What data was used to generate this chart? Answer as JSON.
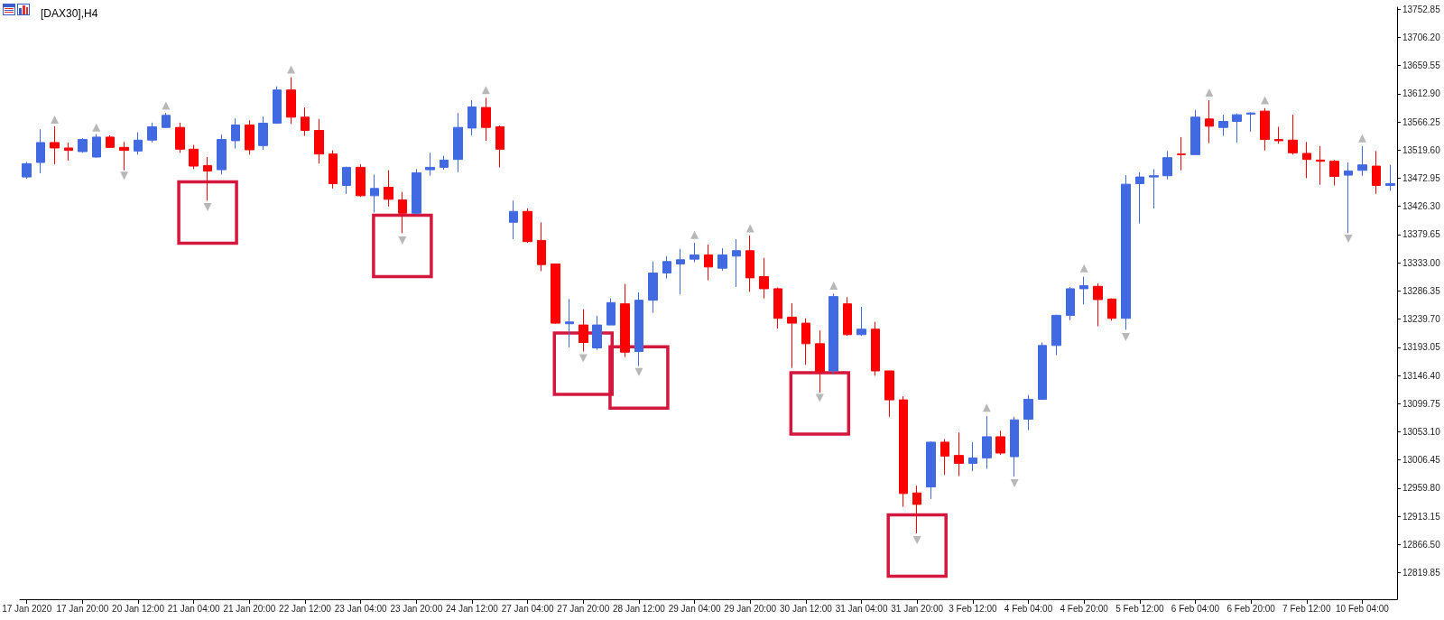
{
  "chart_data": {
    "type": "candlestick",
    "title": "[DAX30],H4",
    "categories": [
      "17 Jan 2020",
      null,
      null,
      null,
      "17 Jan 20:00",
      null,
      null,
      null,
      "20 Jan 12:00",
      null,
      null,
      null,
      "21 Jan 04:00",
      null,
      null,
      null,
      "21 Jan 20:00",
      null,
      null,
      null,
      "22 Jan 12:00",
      null,
      null,
      null,
      "23 Jan 04:00",
      null,
      null,
      null,
      "23 Jan 20:00",
      null,
      null,
      null,
      "24 Jan 12:00",
      null,
      null,
      null,
      "27 Jan 04:00",
      null,
      null,
      null,
      "27 Jan 20:00",
      null,
      null,
      null,
      "28 Jan 12:00",
      null,
      null,
      null,
      "29 Jan 04:00",
      null,
      null,
      null,
      "29 Jan 20:00",
      null,
      null,
      null,
      "30 Jan 12:00",
      null,
      null,
      null,
      "31 Jan 04:00",
      null,
      null,
      null,
      "31 Jan 20:00",
      null,
      null,
      null,
      "3 Feb 12:00",
      null,
      null,
      null,
      "4 Feb 04:00",
      null,
      null,
      null,
      "4 Feb 20:00",
      null,
      null,
      null,
      "5 Feb 12:00",
      null,
      null,
      null,
      "6 Feb 04:00",
      null,
      null,
      null,
      "6 Feb 20:00",
      null,
      null,
      null,
      "7 Feb 12:00",
      null,
      null,
      null,
      "10 Feb 04:00",
      null,
      null
    ],
    "ohlc": [
      [
        13475,
        13500,
        13472,
        13497
      ],
      [
        13499,
        13554,
        13481,
        13532
      ],
      [
        13532,
        13559,
        13496,
        13523
      ],
      [
        13523,
        13532,
        13502,
        13519
      ],
      [
        13517,
        13539,
        13515,
        13537
      ],
      [
        13508,
        13546,
        13507,
        13541
      ],
      [
        13541,
        13544,
        13523,
        13524
      ],
      [
        13524,
        13533,
        13486,
        13519
      ],
      [
        13518,
        13549,
        13512,
        13536
      ],
      [
        13536,
        13565,
        13532,
        13558
      ],
      [
        13557,
        13581,
        13556,
        13577
      ],
      [
        13557,
        13565,
        13515,
        13521
      ],
      [
        13521,
        13528,
        13488,
        13493
      ],
      [
        13494,
        13508,
        13436,
        13485
      ],
      [
        13487,
        13545,
        13479,
        13537
      ],
      [
        13535,
        13572,
        13522,
        13561
      ],
      [
        13561,
        13569,
        13512,
        13520
      ],
      [
        13527,
        13575,
        13520,
        13564
      ],
      [
        13564,
        13625,
        13563,
        13619
      ],
      [
        13619,
        13640,
        13563,
        13574
      ],
      [
        13574,
        13590,
        13543,
        13552
      ],
      [
        13552,
        13571,
        13497,
        13513
      ],
      [
        13513,
        13519,
        13456,
        13464
      ],
      [
        13461,
        13492,
        13447,
        13491
      ],
      [
        13491,
        13496,
        13442,
        13444
      ],
      [
        13444,
        13479,
        13416,
        13456
      ],
      [
        13458,
        13486,
        13426,
        13438
      ],
      [
        13437,
        13450,
        13382,
        13415
      ],
      [
        13415,
        13488,
        13413,
        13482
      ],
      [
        13487,
        13515,
        13477,
        13491
      ],
      [
        13491,
        13510,
        13487,
        13503
      ],
      [
        13504,
        13581,
        13483,
        13557
      ],
      [
        13556,
        13602,
        13544,
        13591
      ],
      [
        13590,
        13606,
        13535,
        13557
      ],
      [
        13558,
        13560,
        13491,
        13521
      ],
      [
        13400,
        13436,
        13372,
        13418
      ],
      [
        13418,
        13423,
        13366,
        13368
      ],
      [
        13370,
        13400,
        13319,
        13330
      ],
      [
        13331,
        13331,
        13232,
        13233
      ],
      [
        13232,
        13273,
        13193,
        13235
      ],
      [
        13230,
        13256,
        13186,
        13201
      ],
      [
        13192,
        13245,
        13189,
        13230
      ],
      [
        13230,
        13274,
        13230,
        13267
      ],
      [
        13265,
        13298,
        13177,
        13185
      ],
      [
        13186,
        13284,
        13162,
        13271
      ],
      [
        13271,
        13335,
        13250,
        13316
      ],
      [
        13316,
        13344,
        13307,
        13335
      ],
      [
        13331,
        13356,
        13281,
        13338
      ],
      [
        13339,
        13366,
        13334,
        13346
      ],
      [
        13346,
        13363,
        13304,
        13326
      ],
      [
        13324,
        13357,
        13320,
        13346
      ],
      [
        13344,
        13372,
        13293,
        13353
      ],
      [
        13353,
        13378,
        13285,
        13308
      ],
      [
        13310,
        13341,
        13274,
        13290
      ],
      [
        13290,
        13292,
        13224,
        13241
      ],
      [
        13243,
        13266,
        13159,
        13233
      ],
      [
        13233,
        13241,
        13164,
        13199
      ],
      [
        13199,
        13221,
        13118,
        13153
      ],
      [
        13154,
        13282,
        13148,
        13277
      ],
      [
        13265,
        13276,
        13212,
        13214
      ],
      [
        13214,
        13260,
        13212,
        13223
      ],
      [
        13223,
        13235,
        13146,
        13154
      ],
      [
        13154,
        13154,
        13078,
        13106
      ],
      [
        13106,
        13112,
        12929,
        12951
      ],
      [
        12952,
        12964,
        12885,
        12933
      ],
      [
        12962,
        13037,
        12942,
        13036
      ],
      [
        13036,
        13041,
        12982,
        13013
      ],
      [
        13014,
        13052,
        12980,
        13001
      ],
      [
        13001,
        13036,
        12988,
        13010
      ],
      [
        13010,
        13079,
        12992,
        13045
      ],
      [
        13045,
        13055,
        13015,
        13018
      ],
      [
        13012,
        13078,
        12979,
        13073
      ],
      [
        13074,
        13114,
        13056,
        13107
      ],
      [
        13107,
        13201,
        13106,
        13196
      ],
      [
        13196,
        13247,
        13180,
        13246
      ],
      [
        13246,
        13293,
        13238,
        13290
      ],
      [
        13290,
        13310,
        13264,
        13295
      ],
      [
        13294,
        13299,
        13228,
        13272
      ],
      [
        13273,
        13274,
        13237,
        13241
      ],
      [
        13241,
        13478,
        13222,
        13463
      ],
      [
        13464,
        13483,
        13398,
        13475
      ],
      [
        13475,
        13488,
        13423,
        13477
      ],
      [
        13477,
        13518,
        13471,
        13507
      ],
      [
        13513,
        13541,
        13486,
        13512
      ],
      [
        13512,
        13586,
        13512,
        13574
      ],
      [
        13571,
        13602,
        13531,
        13559
      ],
      [
        13557,
        13578,
        13543,
        13567
      ],
      [
        13567,
        13580,
        13532,
        13578
      ],
      [
        13579,
        13582,
        13550,
        13581
      ],
      [
        13584,
        13589,
        13519,
        13537
      ],
      [
        13537,
        13558,
        13530,
        13535
      ],
      [
        13536,
        13578,
        13512,
        13515
      ],
      [
        13514,
        13533,
        13473,
        13504
      ],
      [
        13503,
        13526,
        13462,
        13501
      ],
      [
        13501,
        13503,
        13461,
        13476
      ],
      [
        13478,
        13499,
        13382,
        13485
      ],
      [
        13486,
        13526,
        13477,
        13495
      ],
      [
        13493,
        13518,
        13447,
        13461
      ],
      [
        13461,
        13495,
        13452,
        13464
      ]
    ],
    "colors": [
      "#4169e1",
      "#4169e1",
      "#ff0000",
      "#ff0000",
      "#4169e1",
      "#4169e1",
      "#ff0000",
      "#ff0000",
      "#4169e1",
      "#4169e1",
      "#4169e1",
      "#ff0000",
      "#ff0000",
      "#ff0000",
      "#4169e1",
      "#4169e1",
      "#ff0000",
      "#4169e1",
      "#4169e1",
      "#ff0000",
      "#ff0000",
      "#ff0000",
      "#ff0000",
      "#4169e1",
      "#ff0000",
      "#4169e1",
      "#ff0000",
      "#ff0000",
      "#4169e1",
      "#4169e1",
      "#4169e1",
      "#4169e1",
      "#4169e1",
      "#ff0000",
      "#ff0000",
      "#4169e1",
      "#ff0000",
      "#ff0000",
      "#ff0000",
      "#4169e1",
      "#ff0000",
      "#4169e1",
      "#4169e1",
      "#ff0000",
      "#4169e1",
      "#4169e1",
      "#4169e1",
      "#4169e1",
      "#4169e1",
      "#ff0000",
      "#4169e1",
      "#4169e1",
      "#ff0000",
      "#ff0000",
      "#ff0000",
      "#ff0000",
      "#ff0000",
      "#ff0000",
      "#4169e1",
      "#ff0000",
      "#4169e1",
      "#ff0000",
      "#ff0000",
      "#ff0000",
      "#ff0000",
      "#4169e1",
      "#ff0000",
      "#ff0000",
      "#4169e1",
      "#4169e1",
      "#ff0000",
      "#4169e1",
      "#4169e1",
      "#4169e1",
      "#4169e1",
      "#4169e1",
      "#4169e1",
      "#ff0000",
      "#ff0000",
      "#4169e1",
      "#4169e1",
      "#4169e1",
      "#4169e1",
      "#ff0000",
      "#4169e1",
      "#ff0000",
      "#4169e1",
      "#4169e1",
      "#4169e1",
      "#ff0000",
      "#ff0000",
      "#ff0000",
      "#ff0000",
      "#ff0000",
      "#ff0000",
      "#4169e1",
      "#4169e1",
      "#ff0000",
      "#4169e1"
    ],
    "ylim": [
      12776,
      13756
    ],
    "yticks": [
      12819.85,
      {
        "value": 12866.5,
        "label": "12866.50"
      },
      12913.15,
      {
        "value": 12959.8,
        "label": "12959.80"
      },
      13006.45,
      {
        "value": 13053.1,
        "label": "13053.10"
      },
      13099.75,
      {
        "value": 13146.4,
        "label": "13146.40"
      },
      13193.05,
      {
        "value": 13239.7,
        "label": "13239.70"
      },
      13286.35,
      {
        "value": 13333,
        "label": "13333.00"
      },
      13379.65,
      {
        "value": 13426.3,
        "label": "13426.30"
      },
      13472.95,
      {
        "value": 13519.6,
        "label": "13519.60"
      },
      13566.25,
      {
        "value": 13612.9,
        "label": "13612.90"
      },
      13659.55,
      {
        "value": 13706.2,
        "label": "13706.20"
      },
      13752.85
    ],
    "series": [
      {
        "type": "scatter",
        "marker": "triangle",
        "color": "#a6a6a6",
        "values": [
          null,
          null,
          13570,
          null,
          null,
          13557,
          null,
          13477,
          null,
          null,
          13593,
          null,
          null,
          13425,
          null,
          null,
          null,
          null,
          null,
          13653,
          null,
          null,
          null,
          null,
          null,
          null,
          null,
          13370,
          null,
          null,
          null,
          null,
          null,
          13619,
          null,
          null,
          null,
          null,
          null,
          null,
          13175,
          null,
          null,
          null,
          13152,
          null,
          null,
          null,
          13379,
          null,
          null,
          null,
          13390,
          null,
          null,
          null,
          null,
          13109,
          13295,
          null,
          null,
          null,
          null,
          null,
          12874,
          null,
          null,
          null,
          null,
          13093,
          null,
          12968,
          null,
          null,
          null,
          null,
          13324,
          null,
          null,
          13210,
          null,
          null,
          null,
          null,
          null,
          13615,
          null,
          null,
          null,
          13602,
          null,
          null,
          null,
          null,
          null,
          13373,
          13539,
          null,
          null
        ]
      }
    ]
  }
}
